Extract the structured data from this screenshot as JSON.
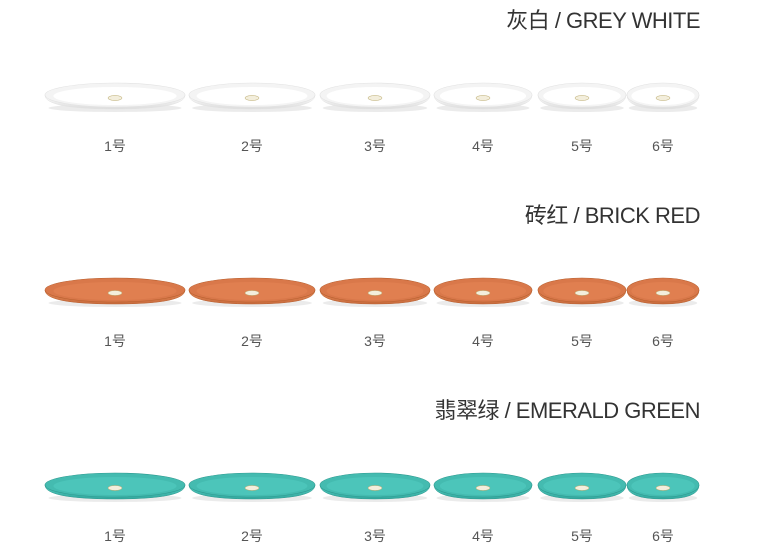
{
  "rows": [
    {
      "title": "灰白 / GREY WHITE",
      "labels": [
        "1号",
        "2号",
        "3号",
        "4号",
        "5号",
        "6号"
      ]
    },
    {
      "title": "砖红 / BRICK RED",
      "labels": [
        "1号",
        "2号",
        "3号",
        "4号",
        "5号",
        "6号"
      ]
    },
    {
      "title": "翡翠绿 / EMERALD GREEN",
      "labels": [
        "1号",
        "2号",
        "3号",
        "4号",
        "5号",
        "6号"
      ]
    }
  ]
}
